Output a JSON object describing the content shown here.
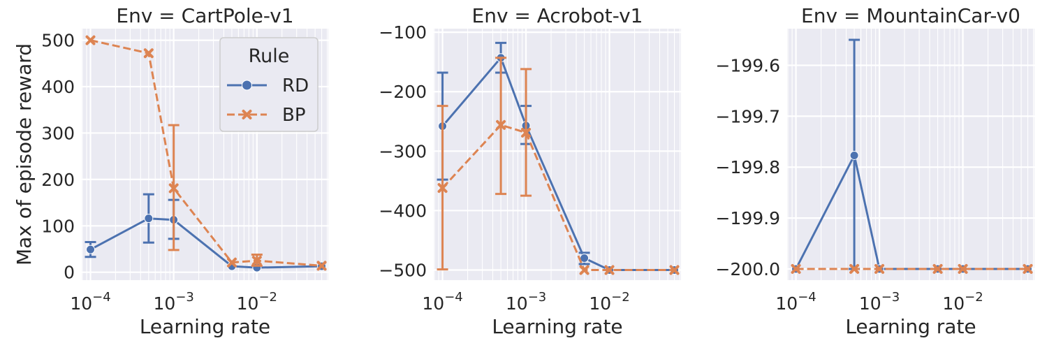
{
  "colors": {
    "RD": "#4c72b0",
    "BP": "#dd8452"
  },
  "legend": {
    "title": "Rule",
    "entries": [
      "RD",
      "BP"
    ]
  },
  "chart_data": [
    {
      "type": "line",
      "title": "Env = CartPole-v1",
      "xlabel": "Learning rate",
      "ylabel": "Max of episode reward",
      "x_scale": "log",
      "xlim": [
        7.85e-05,
        0.072
      ],
      "ylim": [
        -17,
        525
      ],
      "x_ticks": [
        {
          "value": 0.0001,
          "base": "10",
          "exp": "−4"
        },
        {
          "value": 0.001,
          "base": "10",
          "exp": "−3"
        },
        {
          "value": 0.01,
          "base": "10",
          "exp": "−2"
        }
      ],
      "y_ticks": [
        {
          "value": 0,
          "label": "0"
        },
        {
          "value": 100,
          "label": "100"
        },
        {
          "value": 200,
          "label": "200"
        },
        {
          "value": 300,
          "label": "300"
        },
        {
          "value": 400,
          "label": "400"
        },
        {
          "value": 500,
          "label": "500"
        }
      ],
      "legend": "upper right",
      "series": [
        {
          "name": "RD",
          "marker": "circle",
          "linestyle": "solid",
          "x": [
            0.0001,
            0.0005,
            0.001,
            0.005,
            0.01,
            0.06
          ],
          "y": [
            49,
            116,
            113,
            13,
            10,
            13
          ],
          "err_low": [
            33,
            64,
            72,
            13,
            10,
            13
          ],
          "err_high": [
            65,
            168,
            156,
            13,
            10,
            13
          ]
        },
        {
          "name": "BP",
          "marker": "x",
          "linestyle": "dashed",
          "x": [
            0.0001,
            0.0005,
            0.001,
            0.005,
            0.01,
            0.06
          ],
          "y": [
            500,
            472,
            181,
            21,
            25,
            14
          ],
          "err_low": [
            500,
            472,
            48,
            21,
            14,
            14
          ],
          "err_high": [
            500,
            472,
            317,
            21,
            38,
            14
          ]
        }
      ]
    },
    {
      "type": "line",
      "title": "Env = Acrobot-v1",
      "xlabel": "Learning rate",
      "ylabel": "",
      "x_scale": "log",
      "xlim": [
        7.85e-05,
        0.072
      ],
      "ylim": [
        -517,
        -94
      ],
      "x_ticks": [
        {
          "value": 0.0001,
          "base": "10",
          "exp": "−4"
        },
        {
          "value": 0.001,
          "base": "10",
          "exp": "−3"
        },
        {
          "value": 0.01,
          "base": "10",
          "exp": "−2"
        }
      ],
      "y_ticks": [
        {
          "value": -500,
          "label": "−500"
        },
        {
          "value": -400,
          "label": "−400"
        },
        {
          "value": -300,
          "label": "−300"
        },
        {
          "value": -200,
          "label": "−200"
        },
        {
          "value": -100,
          "label": "−100"
        }
      ],
      "series": [
        {
          "name": "RD",
          "marker": "circle",
          "linestyle": "solid",
          "x": [
            0.0001,
            0.0005,
            0.001,
            0.005,
            0.01,
            0.06
          ],
          "y": [
            -258,
            -143,
            -257,
            -480,
            -500,
            -500
          ],
          "err_low": [
            -348,
            -168,
            -288,
            -490,
            -500,
            -500
          ],
          "err_high": [
            -168,
            -118,
            -224,
            -471,
            -500,
            -500
          ]
        },
        {
          "name": "BP",
          "marker": "x",
          "linestyle": "dashed",
          "x": [
            0.0001,
            0.0005,
            0.001,
            0.005,
            0.01,
            0.06
          ],
          "y": [
            -362,
            -256,
            -269,
            -500,
            -500,
            -500
          ],
          "err_low": [
            -499,
            -372,
            -375,
            -500,
            -500,
            -500
          ],
          "err_high": [
            -224,
            -143,
            -162,
            -500,
            -500,
            -500
          ]
        }
      ]
    },
    {
      "type": "line",
      "title": "Env = MountainCar-v0",
      "xlabel": "Learning rate",
      "ylabel": "",
      "x_scale": "log",
      "xlim": [
        7.85e-05,
        0.072
      ],
      "ylim": [
        -200.022,
        -199.528
      ],
      "x_ticks": [
        {
          "value": 0.0001,
          "base": "10",
          "exp": "−4"
        },
        {
          "value": 0.001,
          "base": "10",
          "exp": "−3"
        },
        {
          "value": 0.01,
          "base": "10",
          "exp": "−2"
        }
      ],
      "y_ticks": [
        {
          "value": -200.0,
          "label": "−200.0"
        },
        {
          "value": -199.9,
          "label": "−199.9"
        },
        {
          "value": -199.8,
          "label": "−199.8"
        },
        {
          "value": -199.7,
          "label": "−199.7"
        },
        {
          "value": -199.6,
          "label": "−199.6"
        }
      ],
      "series": [
        {
          "name": "RD",
          "marker": "circle",
          "linestyle": "solid",
          "x": [
            0.0001,
            0.0005,
            0.001,
            0.005,
            0.01,
            0.06
          ],
          "y": [
            -200.0,
            -199.777,
            -200.0,
            -200.0,
            -200.0,
            -200.0
          ],
          "err_low": [
            -200.0,
            -200.0,
            -200.0,
            -200.0,
            -200.0,
            -200.0
          ],
          "err_high": [
            -200.0,
            -199.55,
            -200.0,
            -200.0,
            -200.0,
            -200.0
          ]
        },
        {
          "name": "BP",
          "marker": "x",
          "linestyle": "dashed",
          "x": [
            0.0001,
            0.0005,
            0.001,
            0.005,
            0.01,
            0.06
          ],
          "y": [
            -200.0,
            -200.0,
            -200.0,
            -200.0,
            -200.0,
            -200.0
          ],
          "err_low": [
            -200.0,
            -200.0,
            -200.0,
            -200.0,
            -200.0,
            -200.0
          ],
          "err_high": [
            -200.0,
            -200.0,
            -200.0,
            -200.0,
            -200.0,
            -200.0
          ]
        }
      ]
    }
  ]
}
